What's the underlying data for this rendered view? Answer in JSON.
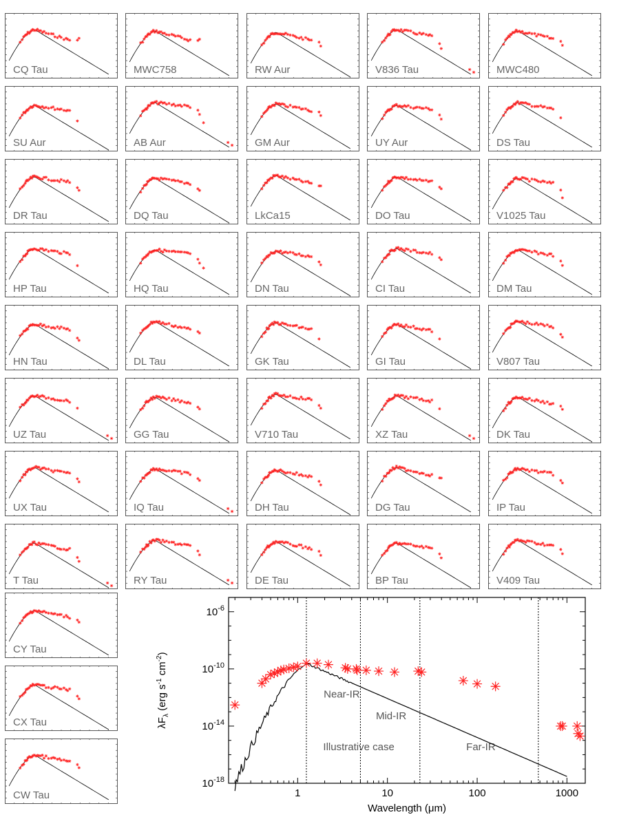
{
  "colors": {
    "data": "#ff2222",
    "model": "#000000",
    "frame": "#555555",
    "label": "#666666"
  },
  "panels": [
    {
      "name": "CQ Tau",
      "flat": 0.8,
      "drop": [
        0.9,
        0.7
      ],
      "tail": "none"
    },
    {
      "name": "MWC758",
      "flat": 0.7,
      "drop": [
        0.8,
        0.6
      ],
      "tail": "none"
    },
    {
      "name": "RW Aur",
      "flat": 0.6,
      "drop": [
        0.9,
        1.3
      ],
      "tail": "none"
    },
    {
      "name": "V836 Tau",
      "flat": 0.5,
      "drop": [
        1.5,
        2.2
      ],
      "tail": "low"
    },
    {
      "name": "MWC480",
      "flat": 0.6,
      "drop": [
        0.9,
        1.4
      ],
      "tail": "none"
    },
    {
      "name": "SU Aur",
      "flat": 0.4,
      "drop": [
        1.6
      ],
      "tail": "none"
    },
    {
      "name": "AB Aur",
      "flat": 0.3,
      "drop": [
        0.5,
        1.2,
        2.4
      ],
      "tail": "low"
    },
    {
      "name": "GM Aur",
      "flat": 0.5,
      "drop": [
        0.6,
        1.0
      ],
      "tail": "none"
    },
    {
      "name": "UY Aur",
      "flat": 0.3,
      "drop": [
        0.8,
        1.4
      ],
      "tail": "none"
    },
    {
      "name": "DS Tau",
      "flat": 0.5,
      "drop": [
        1.6
      ],
      "tail": "none"
    },
    {
      "name": "DR Tau",
      "flat": 0.4,
      "drop": [
        1.0,
        1.4
      ],
      "tail": "none"
    },
    {
      "name": "DQ Tau",
      "flat": 0.4,
      "drop": [
        0.9,
        1.2
      ],
      "tail": "none"
    },
    {
      "name": "LkCa15",
      "flat": 0.6,
      "drop": [
        0.9,
        1.0
      ],
      "tail": "none"
    },
    {
      "name": "DO Tau",
      "flat": 0.4,
      "drop": [
        0.8,
        1.1
      ],
      "tail": "none"
    },
    {
      "name": "V1025 Tau",
      "flat": 0.4,
      "drop": [
        1.1,
        2.2
      ],
      "tail": "none"
    },
    {
      "name": "HP Tau",
      "flat": 0.4,
      "drop": [
        1.8
      ],
      "tail": "none"
    },
    {
      "name": "HQ Tau",
      "flat": 0.3,
      "drop": [
        0.8,
        1.4,
        2.0
      ],
      "tail": "none"
    },
    {
      "name": "DN Tau",
      "flat": 0.4,
      "drop": [
        0.9,
        1.3
      ],
      "tail": "none"
    },
    {
      "name": "CI Tau",
      "flat": 0.4,
      "drop": [
        0.8,
        1.1
      ],
      "tail": "none"
    },
    {
      "name": "DM Tau",
      "flat": 0.4,
      "drop": [
        1.1,
        1.6
      ],
      "tail": "none"
    },
    {
      "name": "HN Tau",
      "flat": 0.4,
      "drop": [
        1.4,
        1.8
      ],
      "tail": "none"
    },
    {
      "name": "DL Tau",
      "flat": 0.6,
      "drop": [
        0.9,
        1.1
      ],
      "tail": "none"
    },
    {
      "name": "GK Tau",
      "flat": 0.5,
      "drop": [
        1.8
      ],
      "tail": "none"
    },
    {
      "name": "GI Tau",
      "flat": 0.5,
      "drop": [
        1.6
      ],
      "tail": "none"
    },
    {
      "name": "V807 Tau",
      "flat": 0.4,
      "drop": [
        1.2,
        1.7
      ],
      "tail": "none"
    },
    {
      "name": "UZ Tau",
      "flat": 0.4,
      "drop": [
        1.3
      ],
      "tail": "low"
    },
    {
      "name": "GG Tau",
      "flat": 0.4,
      "drop": [
        0.9,
        1.1
      ],
      "tail": "none"
    },
    {
      "name": "V710 Tau",
      "flat": 0.4,
      "drop": [
        1.0,
        1.4
      ],
      "tail": "none"
    },
    {
      "name": "XZ Tau",
      "flat": 0.4,
      "drop": [
        1.3
      ],
      "tail": "low"
    },
    {
      "name": "DK Tau",
      "flat": 0.5,
      "drop": [
        0.7,
        1.2
      ],
      "tail": "none"
    },
    {
      "name": "UX Tau",
      "flat": 0.5,
      "drop": [
        1.0,
        1.5
      ],
      "tail": "none"
    },
    {
      "name": "IQ Tau",
      "flat": 0.4,
      "drop": [
        0.8,
        1.1
      ],
      "tail": "low"
    },
    {
      "name": "DH Tau",
      "flat": 0.5,
      "drop": [
        1.0,
        1.5
      ],
      "tail": "none"
    },
    {
      "name": "DG Tau",
      "flat": 0.6,
      "drop": [
        0.9,
        1.0
      ],
      "tail": "none"
    },
    {
      "name": "IP Tau",
      "flat": 0.4,
      "drop": [
        1.1,
        1.5
      ],
      "tail": "none"
    },
    {
      "name": "T Tau",
      "flat": 0.5,
      "drop": [
        1.5,
        2.0
      ],
      "tail": "low"
    },
    {
      "name": "RY Tau",
      "flat": 0.4,
      "drop": [
        1.0,
        1.6
      ],
      "tail": "low"
    },
    {
      "name": "DE Tau",
      "flat": 0.5,
      "drop": [
        0.9,
        1.4
      ],
      "tail": "none"
    },
    {
      "name": "BP Tau",
      "flat": 0.4,
      "drop": [
        1.0,
        1.5
      ],
      "tail": "none"
    },
    {
      "name": "V409 Tau",
      "flat": 0.4,
      "drop": [
        0.8,
        1.4
      ],
      "tail": "none"
    },
    {
      "name": "CY Tau",
      "flat": 0.5,
      "drop": [
        0.8,
        1.0
      ],
      "tail": "none"
    },
    {
      "name": "CX Tau",
      "flat": 0.4,
      "drop": [
        1.0,
        1.5
      ],
      "tail": "none"
    },
    {
      "name": "CW Tau",
      "flat": 0.5,
      "drop": [
        0.8,
        1.3
      ],
      "tail": "none"
    }
  ],
  "chart_data": {
    "type": "scatter",
    "title": "",
    "xlabel": "Wavelength (μm)",
    "ylabel": "λF",
    "ylabel_sub": "λ",
    "ylabel_units": "(erg s",
    "ylabel_exp1": "-1",
    "ylabel_units2": " cm",
    "ylabel_exp2": "-2",
    "ylabel_close": ")",
    "xscale": "log",
    "yscale": "log",
    "xlim": [
      0.17,
      1600
    ],
    "ylim": [
      1e-18,
      1e-05
    ],
    "x_ticks": [
      {
        "value": 1,
        "label": "1"
      },
      {
        "value": 10,
        "label": "10"
      },
      {
        "value": 100,
        "label": "100"
      },
      {
        "value": 1000,
        "label": "1000"
      }
    ],
    "y_ticks": [
      {
        "value": 1e-18,
        "base": "10",
        "exp": "-18"
      },
      {
        "value": 1e-14,
        "base": "10",
        "exp": "-14"
      },
      {
        "value": 1e-10,
        "base": "10",
        "exp": "-10"
      },
      {
        "value": 1e-06,
        "base": "10",
        "exp": "-6"
      }
    ],
    "dividers": [
      1.25,
      5.0,
      23.0,
      480.0
    ],
    "region_labels": [
      {
        "text": "Near-IR",
        "x": 3.1,
        "y": 1e-12
      },
      {
        "text": "Mid-IR",
        "x": 11,
        "y": 3e-14
      },
      {
        "text": "Far-IR",
        "x": 110,
        "y": 2e-16
      },
      {
        "text": "Illustrative case",
        "x": 4.8,
        "y": 2e-16
      }
    ],
    "observed_sed": [
      {
        "x": 0.2,
        "y": 3e-13
      },
      {
        "x": 0.4,
        "y": 1e-11
      },
      {
        "x": 0.44,
        "y": 2e-11
      },
      {
        "x": 0.5,
        "y": 4e-11
      },
      {
        "x": 0.55,
        "y": 5e-11
      },
      {
        "x": 0.6,
        "y": 6e-11
      },
      {
        "x": 0.65,
        "y": 8e-11
      },
      {
        "x": 0.7,
        "y": 9e-11
      },
      {
        "x": 0.8,
        "y": 1.1e-10
      },
      {
        "x": 0.9,
        "y": 1.3e-10
      },
      {
        "x": 1.0,
        "y": 1.5e-10
      },
      {
        "x": 1.25,
        "y": 2.5e-10
      },
      {
        "x": 1.65,
        "y": 2.5e-10
      },
      {
        "x": 2.2,
        "y": 2e-10
      },
      {
        "x": 3.4,
        "y": 1.2e-10
      },
      {
        "x": 3.6,
        "y": 1e-10
      },
      {
        "x": 4.5,
        "y": 1e-10
      },
      {
        "x": 4.6,
        "y": 8e-11
      },
      {
        "x": 5.8,
        "y": 8e-11
      },
      {
        "x": 8,
        "y": 7e-11
      },
      {
        "x": 12,
        "y": 6e-11
      },
      {
        "x": 22,
        "y": 7e-11
      },
      {
        "x": 24,
        "y": 6e-11
      },
      {
        "x": 70,
        "y": 1.5e-11
      },
      {
        "x": 100,
        "y": 9e-12
      },
      {
        "x": 160,
        "y": 6e-12
      },
      {
        "x": 850,
        "y": 1e-14
      },
      {
        "x": 890,
        "y": 1e-14
      },
      {
        "x": 1300,
        "y": 1e-14
      },
      {
        "x": 1330,
        "y": 3e-15
      },
      {
        "x": 1400,
        "y": 2e-15
      }
    ],
    "model_peak": {
      "x": 1.3,
      "y": 2.2e-10
    },
    "model_end": {
      "x": 1000,
      "y": 3e-18
    },
    "model_start": {
      "x": 0.2,
      "y": 8e-19
    }
  }
}
